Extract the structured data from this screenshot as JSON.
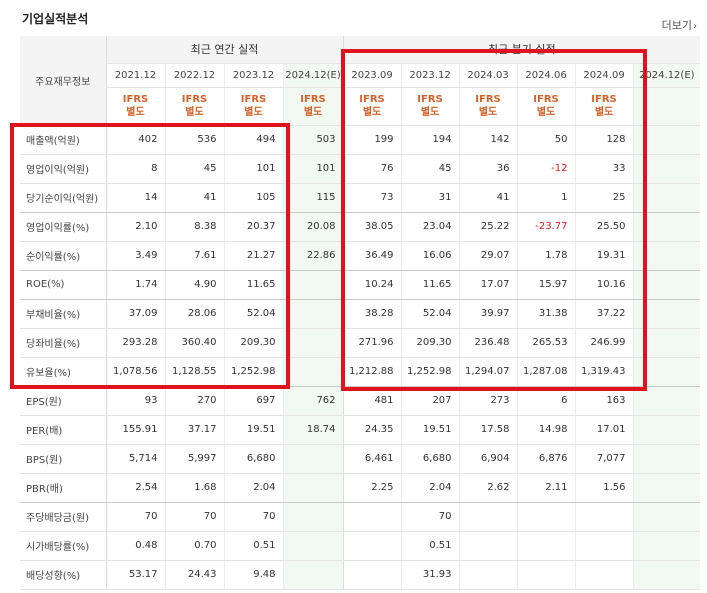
{
  "header": {
    "title": "기업실적분석",
    "more_label": "더보기",
    "more_icon": "chevron-right-icon"
  },
  "table": {
    "row_header_label": "주요재무정보",
    "annual_group": "최근 연간 실적",
    "quarter_group": "최근 분기 실적",
    "annual_periods": [
      "2021.12",
      "2022.12",
      "2023.12",
      "2024.12(E)"
    ],
    "quarter_periods": [
      "2023.09",
      "2023.12",
      "2024.03",
      "2024.06",
      "2024.09",
      "2024.12(E)"
    ],
    "ifrs_line1": "IFRS",
    "ifrs_line2": "별도",
    "rows": [
      {
        "label": "매출액(억원)",
        "values": [
          "402",
          "536",
          "494",
          "503",
          "199",
          "194",
          "142",
          "50",
          "128",
          ""
        ]
      },
      {
        "label": "영업이익(억원)",
        "values": [
          "8",
          "45",
          "101",
          "101",
          "76",
          "45",
          "36",
          "-12",
          "33",
          ""
        ]
      },
      {
        "label": "당기순이익(억원)",
        "values": [
          "14",
          "41",
          "105",
          "115",
          "73",
          "31",
          "41",
          "1",
          "25",
          ""
        ]
      },
      {
        "label": "영업이익률(%)",
        "values": [
          "2.10",
          "8.38",
          "20.37",
          "20.08",
          "38.05",
          "23.04",
          "25.22",
          "-23.77",
          "25.50",
          ""
        ]
      },
      {
        "label": "순이익률(%)",
        "values": [
          "3.49",
          "7.61",
          "21.27",
          "22.86",
          "36.49",
          "16.06",
          "29.07",
          "1.78",
          "19.31",
          ""
        ]
      },
      {
        "label": "ROE(%)",
        "values": [
          "1.74",
          "4.90",
          "11.65",
          "",
          "10.24",
          "11.65",
          "17.07",
          "15.97",
          "10.16",
          ""
        ]
      },
      {
        "label": "부채비율(%)",
        "values": [
          "37.09",
          "28.06",
          "52.04",
          "",
          "38.28",
          "52.04",
          "39.97",
          "31.38",
          "37.22",
          ""
        ]
      },
      {
        "label": "당좌비율(%)",
        "values": [
          "293.28",
          "360.40",
          "209.30",
          "",
          "271.96",
          "209.30",
          "236.48",
          "265.53",
          "246.99",
          ""
        ]
      },
      {
        "label": "유보율(%)",
        "values": [
          "1,078.56",
          "1,128.55",
          "1,252.98",
          "",
          "1,212.88",
          "1,252.98",
          "1,294.07",
          "1,287.08",
          "1,319.43",
          ""
        ]
      },
      {
        "label": "EPS(원)",
        "values": [
          "93",
          "270",
          "697",
          "762",
          "481",
          "207",
          "273",
          "6",
          "163",
          ""
        ]
      },
      {
        "label": "PER(배)",
        "values": [
          "155.91",
          "37.17",
          "19.51",
          "18.74",
          "24.35",
          "19.51",
          "17.58",
          "14.98",
          "17.01",
          ""
        ]
      },
      {
        "label": "BPS(원)",
        "values": [
          "5,714",
          "5,997",
          "6,680",
          "",
          "6,461",
          "6,680",
          "6,904",
          "6,876",
          "7,077",
          ""
        ]
      },
      {
        "label": "PBR(배)",
        "values": [
          "2.54",
          "1.68",
          "2.04",
          "",
          "2.25",
          "2.04",
          "2.62",
          "2.11",
          "1.56",
          ""
        ]
      },
      {
        "label": "주당배당금(원)",
        "values": [
          "70",
          "70",
          "70",
          "",
          "",
          "70",
          "",
          "",
          "",
          ""
        ]
      },
      {
        "label": "시가배당률(%)",
        "values": [
          "0.48",
          "0.70",
          "0.51",
          "",
          "",
          "0.51",
          "",
          "",
          "",
          ""
        ]
      },
      {
        "label": "배당성향(%)",
        "values": [
          "53.17",
          "24.43",
          "9.48",
          "",
          "",
          "31.93",
          "",
          "",
          "",
          ""
        ]
      }
    ]
  },
  "colors": {
    "highlight": "#e0121b",
    "ifrs": "#d4622a",
    "negative": "#e02020",
    "estimate_bg": "#f2f9f2",
    "header_bg": "#f4f4f4"
  }
}
